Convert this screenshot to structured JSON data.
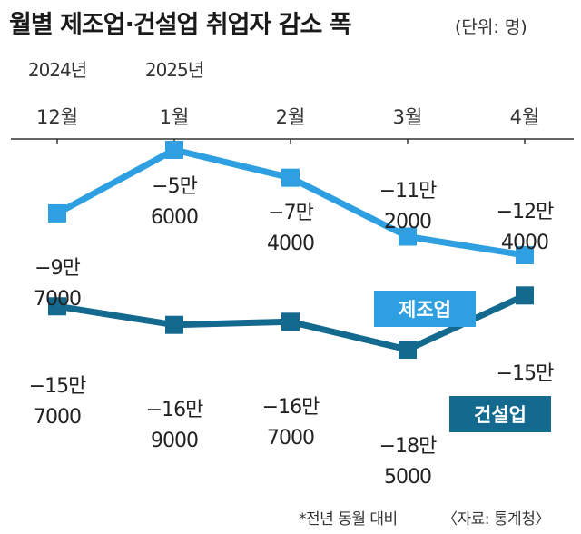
{
  "chart_data": {
    "type": "line",
    "title": "월별 제조업·건설업 취업자 감소 폭",
    "unit": "(단위: 명)",
    "years": [
      "2024년",
      "2025년"
    ],
    "categories": [
      "12월",
      "1월",
      "2월",
      "3월",
      "4월"
    ],
    "series": [
      {
        "name": "제조업",
        "color": "#2e9fe0",
        "values": [
          -97000,
          -56000,
          -74000,
          -112000,
          -124000
        ],
        "labels": [
          [
            "−9만",
            "7000"
          ],
          [
            "−5만",
            "6000"
          ],
          [
            "−7만",
            "4000"
          ],
          [
            "−11만",
            "2000"
          ],
          [
            "−12만",
            "4000"
          ]
        ]
      },
      {
        "name": "건설업",
        "color": "#14698e",
        "values": [
          -157000,
          -169000,
          -167000,
          -185000,
          -150000
        ],
        "labels": [
          [
            "−15만",
            "7000"
          ],
          [
            "−16만",
            "9000"
          ],
          [
            "−16만",
            "7000"
          ],
          [
            "−18만",
            "5000"
          ],
          [
            "−15만",
            ""
          ]
        ]
      }
    ],
    "note": "*전년 동월 대비",
    "source": "〈자료: 통계청〉"
  }
}
